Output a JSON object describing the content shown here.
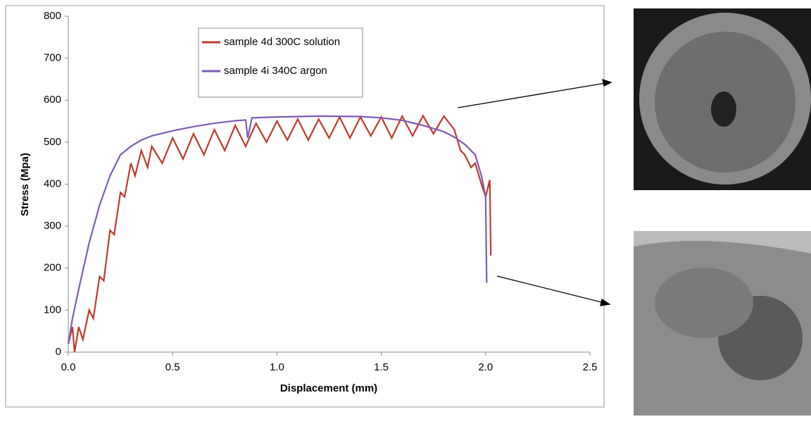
{
  "chart_data": {
    "type": "line",
    "x_label": "Displacement (mm)",
    "y_label": "Stress (Mpa)",
    "xlim": [
      0,
      2.5
    ],
    "ylim": [
      0,
      800
    ],
    "xticks": [
      {
        "value": 0,
        "label": "0.0"
      },
      0.5,
      {
        "value": 1,
        "label": "1.0"
      },
      1.5,
      {
        "value": 2,
        "label": "2.0"
      },
      2.5
    ],
    "yticks": [
      0,
      100,
      200,
      300,
      400,
      500,
      600,
      700,
      800
    ],
    "series": [
      {
        "name": "sample 4d 300C solution",
        "color": "#c0392b",
        "x": [
          0,
          0.02,
          0.03,
          0.05,
          0.07,
          0.1,
          0.12,
          0.15,
          0.17,
          0.2,
          0.22,
          0.25,
          0.27,
          0.3,
          0.32,
          0.35,
          0.38,
          0.4,
          0.45,
          0.5,
          0.55,
          0.6,
          0.65,
          0.7,
          0.75,
          0.8,
          0.85,
          0.9,
          0.95,
          1.0,
          1.05,
          1.1,
          1.15,
          1.2,
          1.25,
          1.3,
          1.35,
          1.4,
          1.45,
          1.5,
          1.55,
          1.6,
          1.65,
          1.7,
          1.75,
          1.8,
          1.85,
          1.88,
          1.9,
          1.93,
          1.95,
          1.98,
          2.0,
          2.02,
          2.025
        ],
        "values": [
          20,
          60,
          0,
          60,
          30,
          100,
          80,
          180,
          170,
          290,
          280,
          380,
          370,
          450,
          420,
          480,
          440,
          490,
          450,
          510,
          460,
          520,
          470,
          530,
          480,
          540,
          490,
          545,
          500,
          550,
          505,
          555,
          505,
          555,
          510,
          560,
          510,
          560,
          515,
          560,
          510,
          562,
          515,
          563,
          520,
          562,
          530,
          480,
          470,
          440,
          450,
          400,
          370,
          410,
          230
        ]
      },
      {
        "name": "sample 4i 340C argon",
        "color": "#7e5bb5",
        "x": [
          0,
          0.02,
          0.05,
          0.1,
          0.15,
          0.2,
          0.25,
          0.3,
          0.35,
          0.4,
          0.5,
          0.6,
          0.7,
          0.8,
          0.85,
          0.86,
          0.88,
          1.0,
          1.2,
          1.4,
          1.5,
          1.6,
          1.7,
          1.8,
          1.85,
          1.9,
          1.95,
          1.98,
          2.0,
          2.005
        ],
        "values": [
          20,
          80,
          150,
          260,
          350,
          420,
          470,
          490,
          505,
          515,
          527,
          537,
          545,
          551,
          553,
          510,
          558,
          560,
          562,
          561,
          558,
          552,
          540,
          525,
          512,
          495,
          470,
          420,
          370,
          165
        ]
      }
    ]
  }
}
